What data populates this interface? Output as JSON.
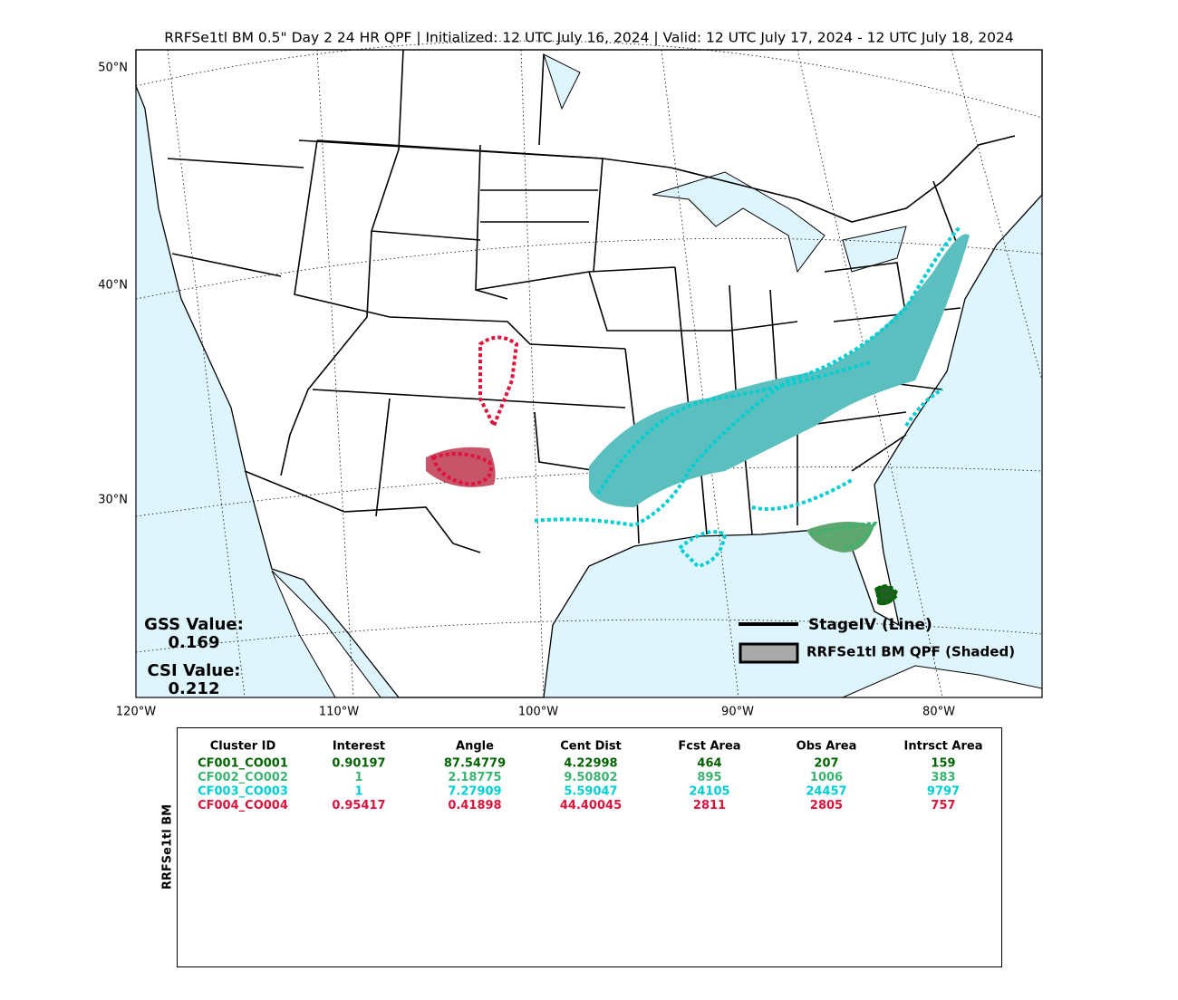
{
  "header": {
    "title": "RRFSe1tl BM 0.5\" Day 2 24 HR QPF | Initialized: 12 UTC July 16, 2024 | Valid: 12 UTC July 17, 2024 - 12 UTC July 18, 2024"
  },
  "map": {
    "lat_labels": [
      "50°N",
      "40°N",
      "30°N"
    ],
    "lon_labels": [
      "120°W",
      "110°W",
      "100°W",
      "90°W",
      "80°W"
    ],
    "stats": {
      "gss_label": "GSS Value:",
      "gss_value": "0.169",
      "csi_label": "CSI Value:",
      "csi_value": "0.212"
    },
    "legend": {
      "line_label": "StageIV (Line)",
      "shaded_label": "RRFSe1tl BM QPF (Shaded)"
    }
  },
  "table": {
    "side_label": "RRFSe1tl BM",
    "headers": [
      "Cluster ID",
      "Interest",
      "Angle",
      "Cent Dist",
      "Fcst Area",
      "Obs Area",
      "Intrsct Area"
    ],
    "rows": [
      {
        "color": "#006400",
        "cells": [
          "CF001_CO001",
          "0.90197",
          "87.54779",
          "4.22998",
          "464",
          "207",
          "159"
        ]
      },
      {
        "color": "#3cb371",
        "cells": [
          "CF002_CO002",
          "1",
          "2.18775",
          "9.50802",
          "895",
          "1006",
          "383"
        ]
      },
      {
        "color": "#00ced1",
        "cells": [
          "CF003_CO003",
          "1",
          "7.27909",
          "5.59047",
          "24105",
          "24457",
          "9797"
        ]
      },
      {
        "color": "#dc143c",
        "cells": [
          "CF004_CO004",
          "0.95417",
          "0.41898",
          "44.40045",
          "2811",
          "2805",
          "757"
        ]
      }
    ]
  }
}
